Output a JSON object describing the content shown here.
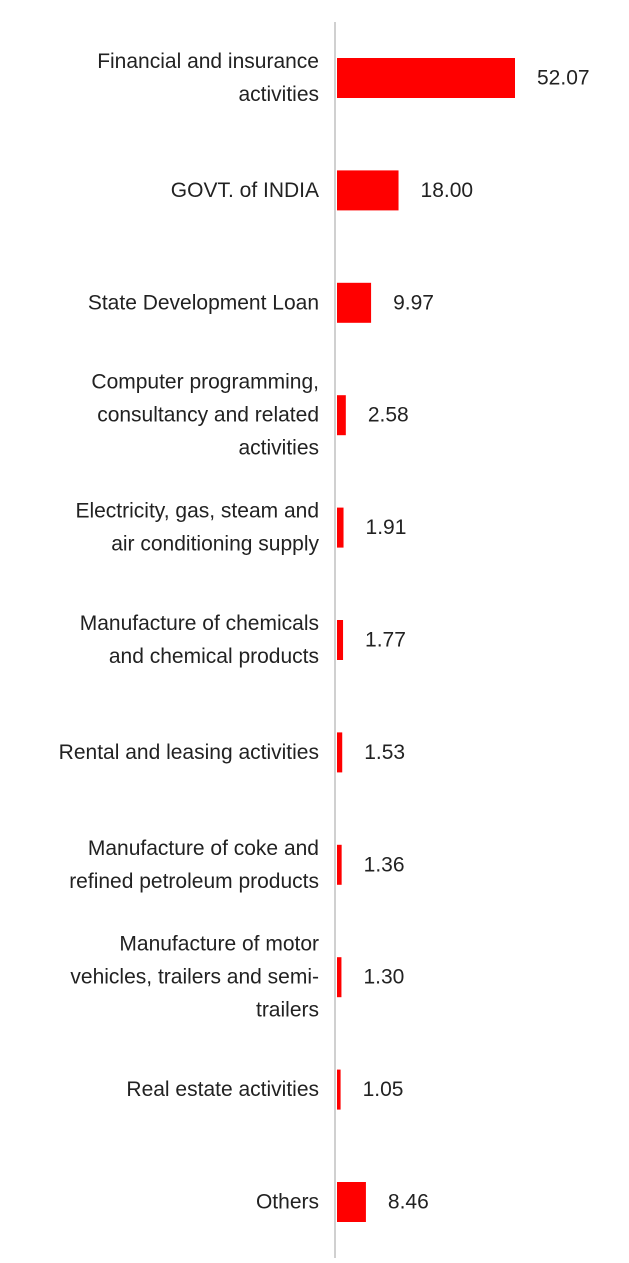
{
  "chart_data": {
    "type": "bar",
    "orientation": "horizontal",
    "title": "",
    "xlabel": "",
    "ylabel": "",
    "categories": [
      "Financial and insurance activities",
      "GOVT. of INDIA",
      "State Development Loan",
      "Computer programming, consultancy and related activities",
      "Electricity, gas, steam and air conditioning supply",
      "Manufacture of chemicals and chemical products",
      "Rental and leasing activities",
      "Manufacture of coke and refined petroleum products",
      "Manufacture of motor vehicles, trailers and semi-trailers",
      "Real estate activities",
      "Others"
    ],
    "category_lines": [
      [
        "Financial and insurance",
        "activities"
      ],
      [
        "GOVT. of INDIA"
      ],
      [
        "State Development Loan"
      ],
      [
        "Computer programming,",
        "consultancy and related",
        "activities"
      ],
      [
        "Electricity, gas, steam and",
        "air conditioning supply"
      ],
      [
        "Manufacture of chemicals",
        "and chemical products"
      ],
      [
        "Rental and leasing activities"
      ],
      [
        "Manufacture of coke and",
        "refined petroleum products"
      ],
      [
        "Manufacture of motor",
        "vehicles, trailers and semi-",
        "trailers"
      ],
      [
        "Real estate activities"
      ],
      [
        "Others"
      ]
    ],
    "values": [
      52.07,
      18.0,
      9.97,
      2.58,
      1.91,
      1.77,
      1.53,
      1.36,
      1.3,
      1.05,
      8.46
    ],
    "value_labels": [
      "52.07",
      "18.00",
      "9.97",
      "2.58",
      "1.91",
      "1.77",
      "1.53",
      "1.36",
      "1.30",
      "1.05",
      "8.46"
    ],
    "xlim": [
      0,
      52.07
    ],
    "grid": false,
    "legend": "none",
    "bar_color": "#ff0000",
    "axis_color": "#d0d0d0",
    "text_color": "#222222"
  }
}
